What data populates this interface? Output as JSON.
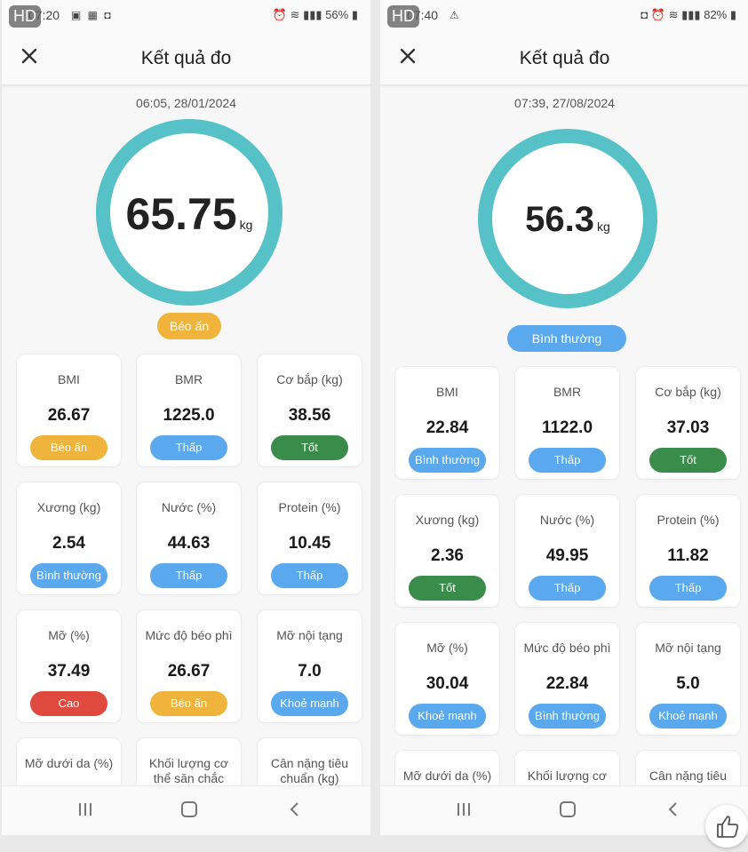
{
  "screens": [
    {
      "hd": "HD",
      "status": {
        "time": "07:20",
        "battery": "56%"
      },
      "header": {
        "title": "Kết quả đo"
      },
      "datetime": "06:05, 28/01/2024",
      "weight": {
        "value": "65.75",
        "unit": "kg"
      },
      "main_badge": {
        "label": "Béo ấn",
        "color": "#f0b43c"
      },
      "cards": [
        {
          "label": "BMI",
          "value": "26.67",
          "badge": "Béo ấn",
          "color": "#f0b43c"
        },
        {
          "label": "BMR",
          "value": "1225.0",
          "badge": "Thấp",
          "color": "#5aa8ee"
        },
        {
          "label": "Cơ bắp (kg)",
          "value": "38.56",
          "badge": "Tốt",
          "color": "#3a8c4a"
        },
        {
          "label": "Xương (kg)",
          "value": "2.54",
          "badge": "Bình thường",
          "color": "#5aa8ee"
        },
        {
          "label": "Nước (%)",
          "value": "44.63",
          "badge": "Thấp",
          "color": "#5aa8ee"
        },
        {
          "label": "Protein (%)",
          "value": "10.45",
          "badge": "Thấp",
          "color": "#5aa8ee"
        },
        {
          "label": "Mỡ (%)",
          "value": "37.49",
          "badge": "Cao",
          "color": "#e04a3e"
        },
        {
          "label": "Mức độ béo phì",
          "value": "26.67",
          "badge": "Béo ấn",
          "color": "#f0b43c"
        },
        {
          "label": "Mỡ nội tạng",
          "value": "7.0",
          "badge": "Khoẻ mạnh",
          "color": "#5aa8ee"
        }
      ],
      "partial_cards": [
        {
          "label": "Mỡ dưới da (%)"
        },
        {
          "label": "Khối lượng cơ thể săn chắc"
        },
        {
          "label": "Cân nặng tiêu chuẩn (kg)"
        }
      ]
    },
    {
      "hd": "HD",
      "status": {
        "time": "07:40",
        "battery": "82%"
      },
      "header": {
        "title": "Kết quả đo"
      },
      "datetime": "07:39, 27/08/2024",
      "weight": {
        "value": "56.3",
        "unit": "kg"
      },
      "main_badge": {
        "label": "Bình thường",
        "color": "#5aa8ee"
      },
      "cards": [
        {
          "label": "BMI",
          "value": "22.84",
          "badge": "Bình thường",
          "color": "#5aa8ee"
        },
        {
          "label": "BMR",
          "value": "1122.0",
          "badge": "Thấp",
          "color": "#5aa8ee"
        },
        {
          "label": "Cơ bắp (kg)",
          "value": "37.03",
          "badge": "Tốt",
          "color": "#3a8c4a"
        },
        {
          "label": "Xương (kg)",
          "value": "2.36",
          "badge": "Tốt",
          "color": "#3a8c4a"
        },
        {
          "label": "Nước (%)",
          "value": "49.95",
          "badge": "Thấp",
          "color": "#5aa8ee"
        },
        {
          "label": "Protein (%)",
          "value": "11.82",
          "badge": "Thấp",
          "color": "#5aa8ee"
        },
        {
          "label": "Mỡ (%)",
          "value": "30.04",
          "badge": "Khoẻ mạnh",
          "color": "#5aa8ee"
        },
        {
          "label": "Mức độ béo phì",
          "value": "22.84",
          "badge": "Bình thường",
          "color": "#5aa8ee"
        },
        {
          "label": "Mỡ nội tạng",
          "value": "5.0",
          "badge": "Khoẻ mạnh",
          "color": "#5aa8ee"
        }
      ],
      "partial_cards": [
        {
          "label": "Mỡ dưới da (%)"
        },
        {
          "label": "Khối lượng cơ"
        },
        {
          "label": "Cân nặng tiêu"
        }
      ]
    }
  ],
  "icons": {
    "close": "close-icon",
    "nav_recent": "recent-apps-icon",
    "nav_home": "home-icon",
    "nav_back": "back-icon",
    "like": "thumbs-up-icon"
  }
}
